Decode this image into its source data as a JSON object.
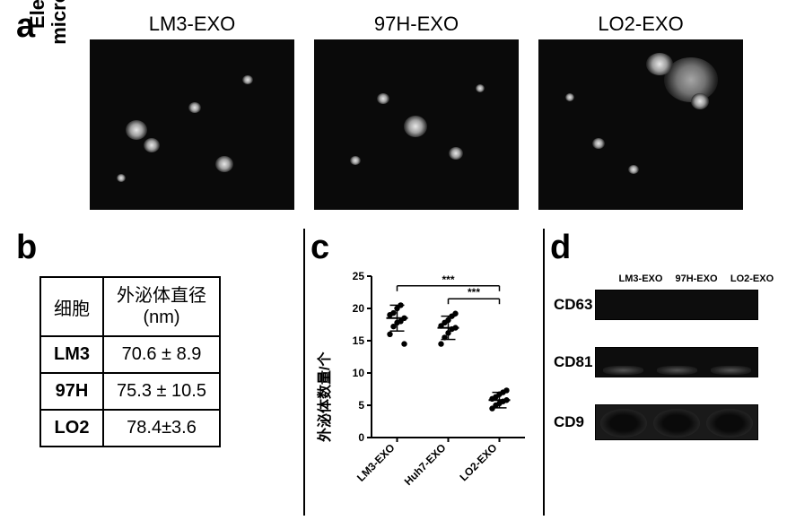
{
  "panel_a": {
    "label": "a",
    "side_label_line1": "Electron",
    "side_label_line2": "microscope",
    "images": [
      {
        "title": "LM3-EXO"
      },
      {
        "title": "97H-EXO"
      },
      {
        "title": "LO2-EXO"
      }
    ],
    "image_bg": "#0a0a0a"
  },
  "panel_b": {
    "label": "b",
    "table": {
      "header": {
        "col1": "细胞",
        "col2": "外泌体直径\n(nm)"
      },
      "rows": [
        {
          "cell": "LM3",
          "diam": "70.6 ± 8.9"
        },
        {
          "cell": "97H",
          "diam": "75.3 ± 10.5"
        },
        {
          "cell": "LO2",
          "diam": "78.4±3.6"
        }
      ]
    },
    "border_color": "#000000",
    "fontsize": 20
  },
  "panel_c": {
    "label": "c",
    "type": "scatter",
    "ylabel": "外泌体数量/个",
    "ylim": [
      0,
      25
    ],
    "ytick_step": 5,
    "xcategories": [
      "LM3-EXO",
      "Huh7-EXO",
      "LO2-EXO"
    ],
    "series": [
      {
        "name": "LM3-EXO",
        "x": 0,
        "mean": 18.5,
        "sd": 2.0,
        "points": [
          16.0,
          17.2,
          17.8,
          18.0,
          18.5,
          19.0,
          19.3,
          20.0,
          20.5,
          14.5
        ]
      },
      {
        "name": "Huh7-EXO",
        "x": 1,
        "mean": 17.0,
        "sd": 1.8,
        "points": [
          14.5,
          15.5,
          16.2,
          16.8,
          17.0,
          17.3,
          17.8,
          18.2,
          18.8,
          19.2
        ]
      },
      {
        "name": "LO2-EXO",
        "x": 2,
        "mean": 5.8,
        "sd": 1.2,
        "points": [
          4.5,
          5.0,
          5.3,
          5.6,
          5.8,
          6.0,
          6.3,
          6.7,
          7.0,
          7.3
        ]
      }
    ],
    "sig_bars": [
      {
        "from": 0,
        "to": 2,
        "y": 23.5,
        "label": "***"
      },
      {
        "from": 1,
        "to": 2,
        "y": 21.5,
        "label": "***"
      }
    ],
    "marker_color": "#000000",
    "axis_color": "#000000",
    "tick_fontsize": 12,
    "label_fontsize": 16,
    "xlabel_rotation": 45
  },
  "panel_d": {
    "label": "d",
    "lanes": [
      "LM3-EXO",
      "97H-EXO",
      "LO2-EXO"
    ],
    "rows": [
      {
        "marker": "CD63"
      },
      {
        "marker": "CD81"
      },
      {
        "marker": "CD9"
      }
    ],
    "band_bg": "#0d0d0d",
    "lane_fontsize": 11,
    "marker_fontsize": 17
  }
}
